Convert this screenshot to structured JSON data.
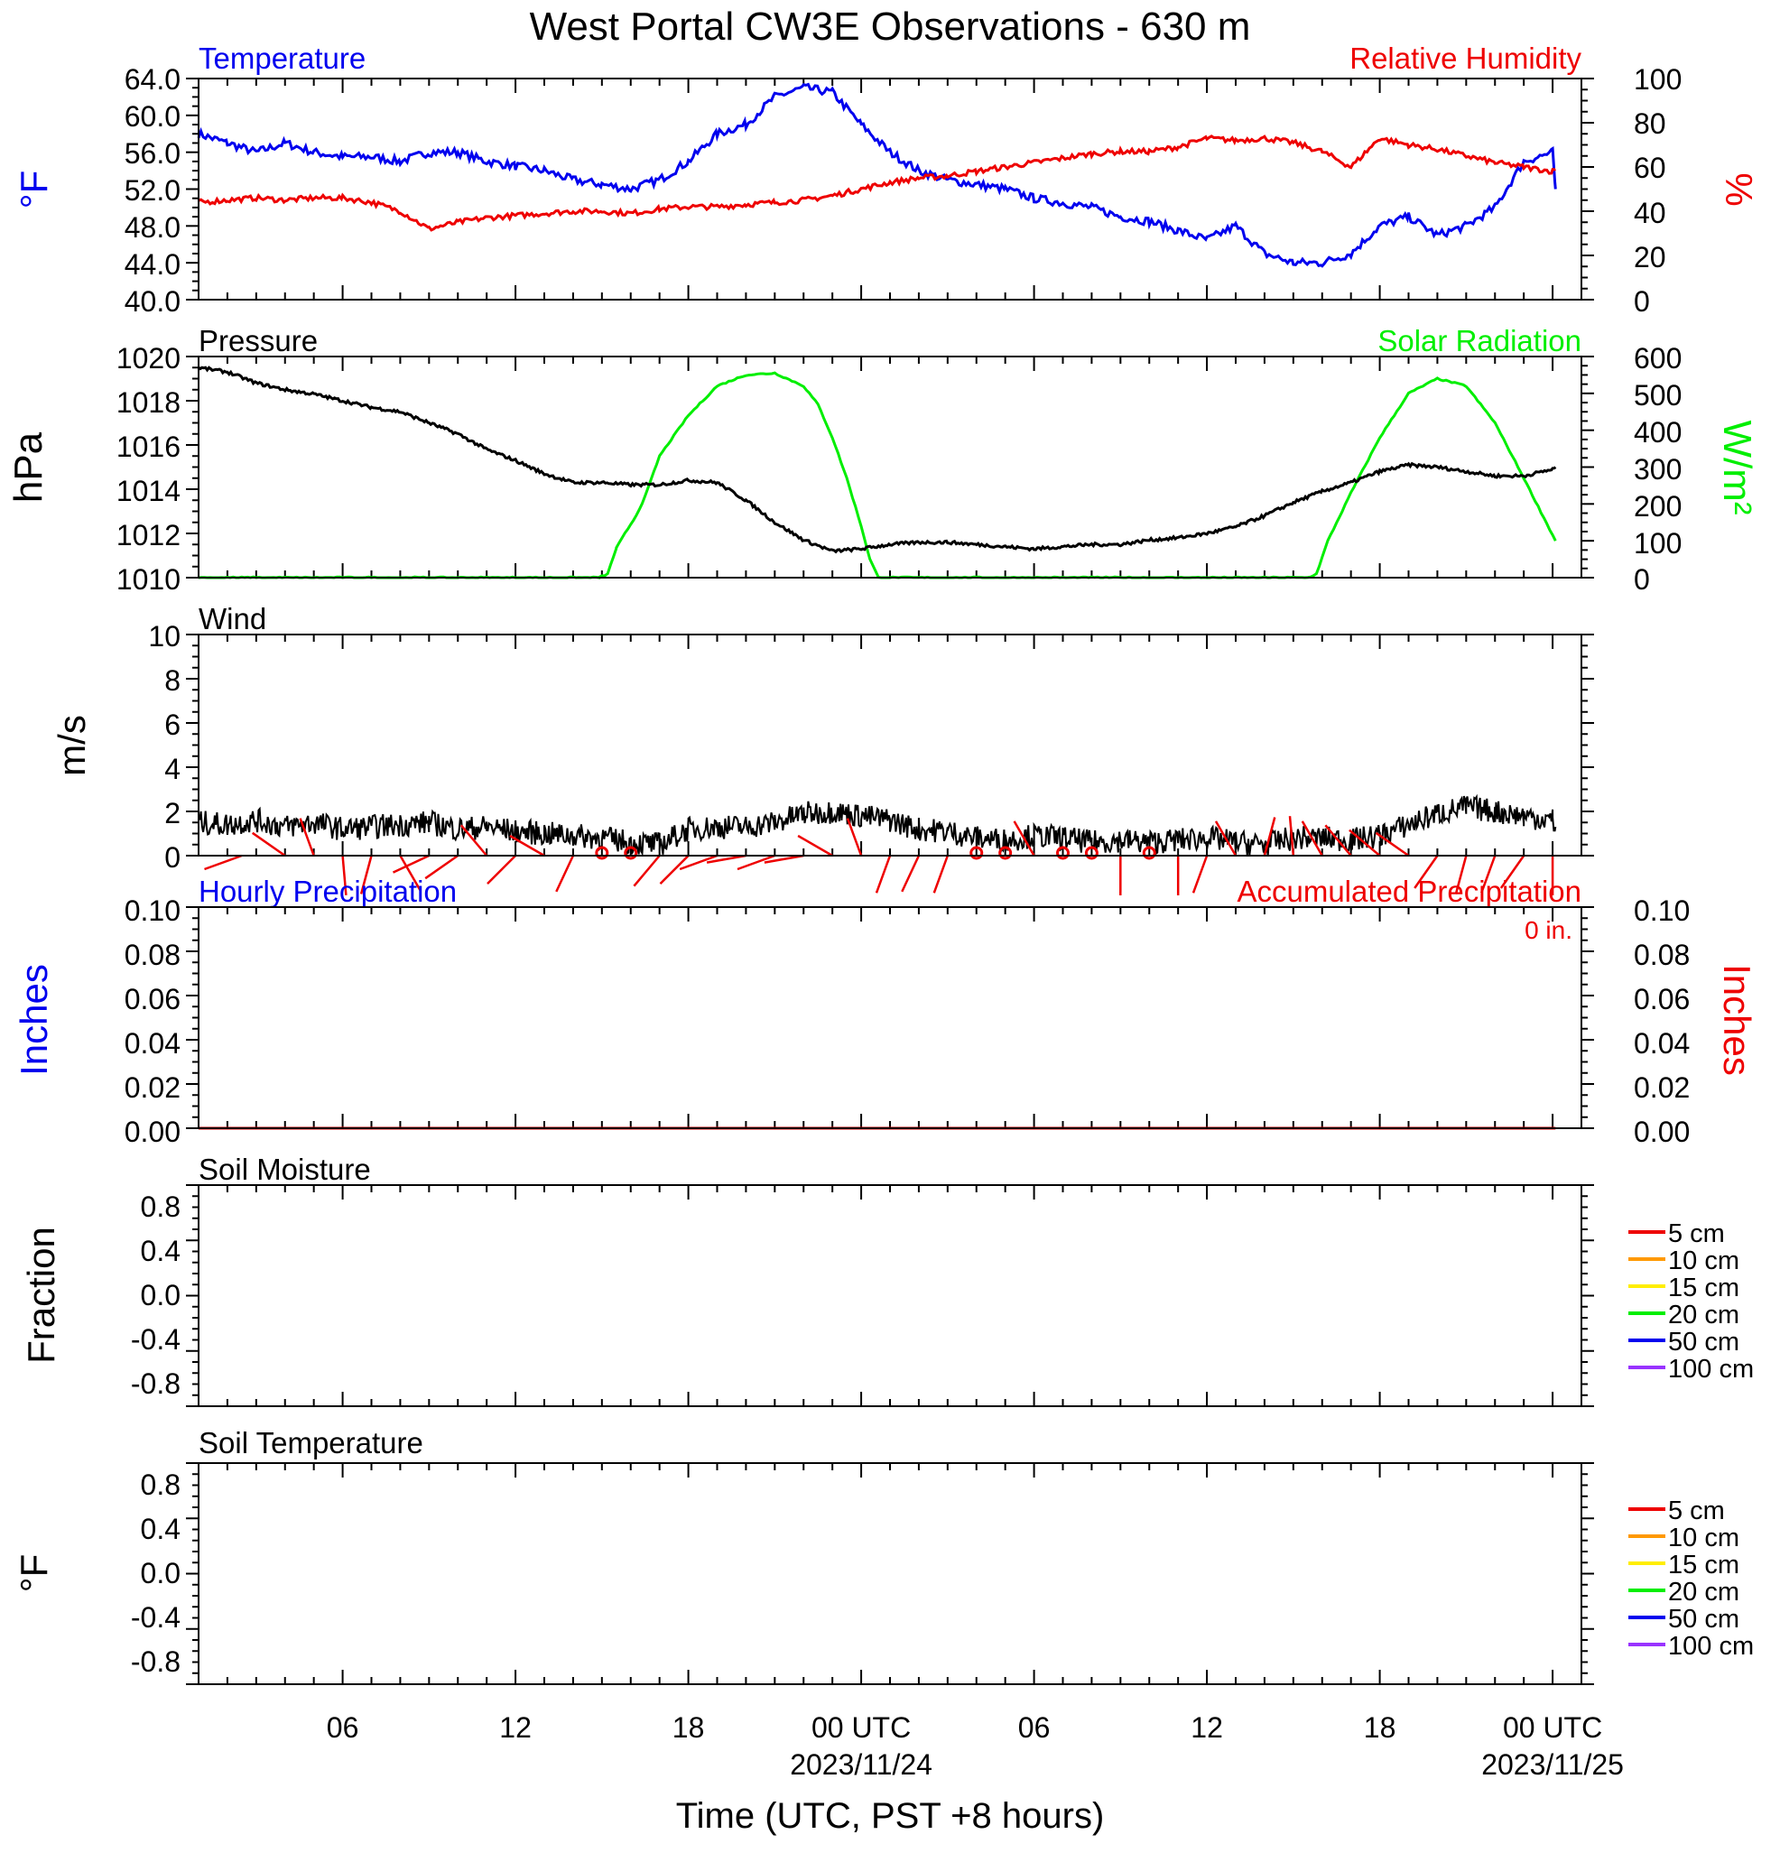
{
  "title": "West Portal CW3E Observations - 630 m",
  "x_axis": {
    "label": "Time (UTC, PST +8 hours)",
    "ticks": [
      "06",
      "12",
      "18",
      "00 UTC",
      "06",
      "12",
      "18",
      "00 UTC"
    ],
    "tick_hours": [
      6,
      12,
      18,
      24,
      30,
      36,
      42,
      48
    ],
    "dates": [
      {
        "text": "2023/11/24",
        "hour": 24
      },
      {
        "text": "2023/11/25",
        "hour": 48
      }
    ],
    "range_hours": [
      1,
      49
    ]
  },
  "colors": {
    "temperature": "#0000ee",
    "humidity": "#ee0000",
    "pressure": "#000000",
    "solar": "#00ee00",
    "wind": "#000000",
    "barb": "#ee0000",
    "soil": [
      "#ee0000",
      "#ff9900",
      "#ffee00",
      "#00ee00",
      "#0000ee",
      "#9933ff"
    ]
  },
  "panels": {
    "temp_rh": {
      "left_title": "Temperature",
      "right_title": "Relative Humidity",
      "left_unit": "°F",
      "right_unit": "%",
      "left_ticks": [
        "64.0",
        "60.0",
        "56.0",
        "52.0",
        "48.0",
        "44.0",
        "40.0"
      ],
      "right_ticks": [
        "100",
        "80",
        "60",
        "40",
        "20",
        "0"
      ]
    },
    "pressure": {
      "left_title": "Pressure",
      "right_title": "Solar Radiation",
      "left_unit": "hPa",
      "right_unit": "W/m²",
      "left_ticks": [
        "1020",
        "1018",
        "1016",
        "1014",
        "1012",
        "1010"
      ],
      "right_ticks": [
        "600",
        "500",
        "400",
        "300",
        "200",
        "100",
        "0"
      ]
    },
    "wind": {
      "left_title": "Wind",
      "left_unit": "m/s",
      "left_ticks": [
        "10",
        "8",
        "6",
        "4",
        "2",
        "0"
      ]
    },
    "precip": {
      "left_title": "Hourly Precipitation",
      "right_title": "Accumulated Precipitation",
      "left_unit": "Inches",
      "right_unit": "Inches",
      "total_label": "0 in.",
      "left_ticks": [
        "0.10",
        "0.08",
        "0.06",
        "0.04",
        "0.02",
        "0.00"
      ],
      "right_ticks": [
        "0.10",
        "0.08",
        "0.06",
        "0.04",
        "0.02",
        "0.00"
      ]
    },
    "soil_moisture": {
      "left_title": "Soil Moisture",
      "left_unit": "Fraction",
      "left_ticks": [
        "0.8",
        "0.4",
        "0.0",
        "-0.4",
        "-0.8"
      ],
      "legend": [
        "5 cm",
        "10 cm",
        "15 cm",
        "20 cm",
        "50 cm",
        "100 cm"
      ]
    },
    "soil_temperature": {
      "left_title": "Soil Temperature",
      "left_unit": "°F",
      "left_ticks": [
        "0.8",
        "0.4",
        "0.0",
        "-0.4",
        "-0.8"
      ],
      "legend": [
        "5 cm",
        "10 cm",
        "15 cm",
        "20 cm",
        "50 cm",
        "100 cm"
      ]
    }
  },
  "chart_data": {
    "type": "line",
    "temperature": {
      "ylim": [
        40,
        64
      ],
      "x": [
        1,
        2,
        3,
        4,
        5,
        6,
        7,
        8,
        9,
        10,
        11,
        12,
        13,
        14,
        15,
        16,
        17,
        18,
        19,
        20,
        21,
        22,
        23,
        24,
        25,
        26,
        27,
        28,
        29,
        30,
        31,
        32,
        33,
        34,
        35,
        36,
        37,
        38,
        39,
        40,
        41,
        42,
        43,
        44,
        45,
        46,
        47,
        48,
        48.1
      ],
      "values": [
        58,
        57,
        56,
        57,
        56,
        55.5,
        55.5,
        55,
        56,
        56,
        55,
        54.5,
        54,
        53,
        52.5,
        52,
        53,
        55,
        58,
        59,
        62,
        63,
        62.5,
        59,
        56,
        54,
        53,
        52.5,
        52,
        51,
        50.5,
        50,
        49,
        48.5,
        47.5,
        46.5,
        48,
        45,
        44,
        44,
        45,
        48,
        49,
        47,
        48,
        50,
        55,
        56,
        52
      ]
    },
    "humidity": {
      "ylim": [
        0,
        100
      ],
      "x": [
        1,
        2,
        3,
        4,
        5,
        6,
        7,
        8,
        9,
        10,
        11,
        12,
        13,
        14,
        15,
        16,
        17,
        18,
        19,
        20,
        21,
        22,
        23,
        24,
        25,
        26,
        27,
        28,
        29,
        30,
        31,
        32,
        33,
        34,
        35,
        36,
        37,
        38,
        39,
        40,
        41,
        42,
        43,
        44,
        45,
        46,
        47,
        48,
        48.1
      ],
      "values": [
        44,
        45,
        46,
        45,
        46,
        46,
        44,
        40,
        32,
        35,
        37,
        38,
        39,
        40,
        40,
        39,
        41,
        42,
        42,
        43,
        44,
        45,
        47,
        50,
        53,
        55,
        56,
        58,
        60,
        62,
        64,
        66,
        67,
        67,
        69,
        73,
        72,
        73,
        71,
        67,
        60,
        73,
        70,
        68,
        65,
        62,
        60,
        58,
        59
      ]
    },
    "pressure": {
      "ylim": [
        1010,
        1020
      ],
      "x": [
        1,
        2,
        3,
        4,
        5,
        6,
        7,
        8,
        9,
        10,
        11,
        12,
        13,
        14,
        15,
        16,
        17,
        18,
        19,
        20,
        21,
        22,
        23,
        24,
        25,
        26,
        27,
        28,
        29,
        30,
        31,
        32,
        33,
        34,
        35,
        36,
        37,
        38,
        39,
        40,
        41,
        42,
        43,
        44,
        45,
        46,
        47,
        48,
        48.1
      ],
      "values": [
        1019.5,
        1019.3,
        1018.8,
        1018.5,
        1018.3,
        1018,
        1017.7,
        1017.5,
        1017,
        1016.5,
        1015.8,
        1015.3,
        1014.7,
        1014.3,
        1014.3,
        1014.2,
        1014.2,
        1014.4,
        1014.3,
        1013.5,
        1012.5,
        1011.7,
        1011.2,
        1011.3,
        1011.5,
        1011.6,
        1011.6,
        1011.5,
        1011.4,
        1011.3,
        1011.4,
        1011.5,
        1011.5,
        1011.7,
        1011.8,
        1012,
        1012.3,
        1012.8,
        1013.4,
        1013.9,
        1014.3,
        1014.8,
        1015.1,
        1015,
        1014.8,
        1014.6,
        1014.6,
        1014.9,
        1015
      ]
    },
    "solar": {
      "ylim": [
        0,
        600
      ],
      "x": [
        1,
        14.9,
        15.2,
        15.5,
        15.8,
        16.2,
        16.5,
        17,
        18,
        19,
        20,
        21,
        22,
        22.5,
        23,
        23.5,
        24,
        24.3,
        24.6,
        39.5,
        39.8,
        40.2,
        41,
        42,
        43,
        44,
        45,
        46,
        47,
        48.1
      ],
      "values": [
        0,
        0,
        10,
        80,
        120,
        170,
        220,
        330,
        440,
        520,
        550,
        555,
        520,
        470,
        380,
        270,
        140,
        50,
        0,
        0,
        10,
        100,
        230,
        380,
        500,
        540,
        520,
        420,
        270,
        100
      ]
    },
    "wind_speed": {
      "ylim": [
        0,
        10
      ],
      "x": [
        1,
        2,
        3,
        4,
        5,
        6,
        7,
        8,
        9,
        10,
        11,
        12,
        13,
        14,
        15,
        16,
        17,
        18,
        19,
        20,
        21,
        22,
        23,
        24,
        25,
        26,
        27,
        28,
        29,
        30,
        31,
        32,
        33,
        34,
        35,
        36,
        37,
        38,
        39,
        40,
        41,
        42,
        43,
        44,
        45,
        46,
        47,
        48,
        48.1
      ],
      "values": [
        1.5,
        1.4,
        1.6,
        1.3,
        1.5,
        1.2,
        1.3,
        1.4,
        1.5,
        1.2,
        1.3,
        1.1,
        1.0,
        0.9,
        0.8,
        0.6,
        0.5,
        1.2,
        1.3,
        1.3,
        1.5,
        1.9,
        2.0,
        1.8,
        1.6,
        1.2,
        1.1,
        0.8,
        0.7,
        0.9,
        0.8,
        0.6,
        0.7,
        0.6,
        0.7,
        0.8,
        0.6,
        0.5,
        0.8,
        0.8,
        0.7,
        0.9,
        1.4,
        1.9,
        2.2,
        2.0,
        1.8,
        1.6,
        1.3
      ]
    },
    "wind_barbs": [
      {
        "hour": 2.5,
        "type": "barb",
        "dir": 250
      },
      {
        "hour": 4,
        "type": "barb",
        "dir": 305
      },
      {
        "hour": 5,
        "type": "barb",
        "dir": 340
      },
      {
        "hour": 6,
        "type": "barb",
        "dir": 175
      },
      {
        "hour": 7,
        "type": "barb",
        "dir": 195
      },
      {
        "hour": 8,
        "type": "barb",
        "dir": 150
      },
      {
        "hour": 9,
        "type": "barb",
        "dir": 245
      },
      {
        "hour": 10,
        "type": "barb",
        "dir": 235
      },
      {
        "hour": 11,
        "type": "barb",
        "dir": 320
      },
      {
        "hour": 12,
        "type": "barb",
        "dir": 225
      },
      {
        "hour": 13,
        "type": "barb",
        "dir": 300
      },
      {
        "hour": 14,
        "type": "barb",
        "dir": 205
      },
      {
        "hour": 15,
        "type": "calm"
      },
      {
        "hour": 16,
        "type": "calm"
      },
      {
        "hour": 17,
        "type": "barb",
        "dir": 220
      },
      {
        "hour": 18,
        "type": "barb",
        "dir": 225
      },
      {
        "hour": 19,
        "type": "barb",
        "dir": 250
      },
      {
        "hour": 20,
        "type": "barb",
        "dir": 260
      },
      {
        "hour": 21,
        "type": "barb",
        "dir": 250
      },
      {
        "hour": 22,
        "type": "barb",
        "dir": 260
      },
      {
        "hour": 23,
        "type": "barb",
        "dir": 300
      },
      {
        "hour": 24,
        "type": "barb",
        "dir": 340
      },
      {
        "hour": 25,
        "type": "barb",
        "dir": 200
      },
      {
        "hour": 26,
        "type": "barb",
        "dir": 205
      },
      {
        "hour": 27,
        "type": "barb",
        "dir": 200
      },
      {
        "hour": 28,
        "type": "calm"
      },
      {
        "hour": 29,
        "type": "calm"
      },
      {
        "hour": 30,
        "type": "barb",
        "dir": 330
      },
      {
        "hour": 31,
        "type": "calm"
      },
      {
        "hour": 32,
        "type": "calm"
      },
      {
        "hour": 33,
        "type": "barb",
        "dir": 180
      },
      {
        "hour": 34,
        "type": "calm"
      },
      {
        "hour": 35,
        "type": "barb",
        "dir": 180
      },
      {
        "hour": 36,
        "type": "barb",
        "dir": 200
      },
      {
        "hour": 37,
        "type": "barb",
        "dir": 330
      },
      {
        "hour": 38,
        "type": "barb",
        "dir": 15
      },
      {
        "hour": 39,
        "type": "barb",
        "dir": 355
      },
      {
        "hour": 40,
        "type": "barb",
        "dir": 330
      },
      {
        "hour": 41,
        "type": "barb",
        "dir": 320
      },
      {
        "hour": 42,
        "type": "barb",
        "dir": 310
      },
      {
        "hour": 43,
        "type": "barb",
        "dir": 305
      },
      {
        "hour": 44,
        "type": "barb",
        "dir": 215
      },
      {
        "hour": 45,
        "type": "barb",
        "dir": 195
      },
      {
        "hour": 46,
        "type": "barb",
        "dir": 200
      },
      {
        "hour": 47,
        "type": "barb",
        "dir": 215
      },
      {
        "hour": 48,
        "type": "barb",
        "dir": 180
      }
    ],
    "hourly_precip": {
      "ylim": [
        0,
        0.1
      ],
      "value_all_hours": 0
    },
    "accumulated_precip": {
      "ylim": [
        0,
        0.1
      ],
      "total": 0
    }
  }
}
